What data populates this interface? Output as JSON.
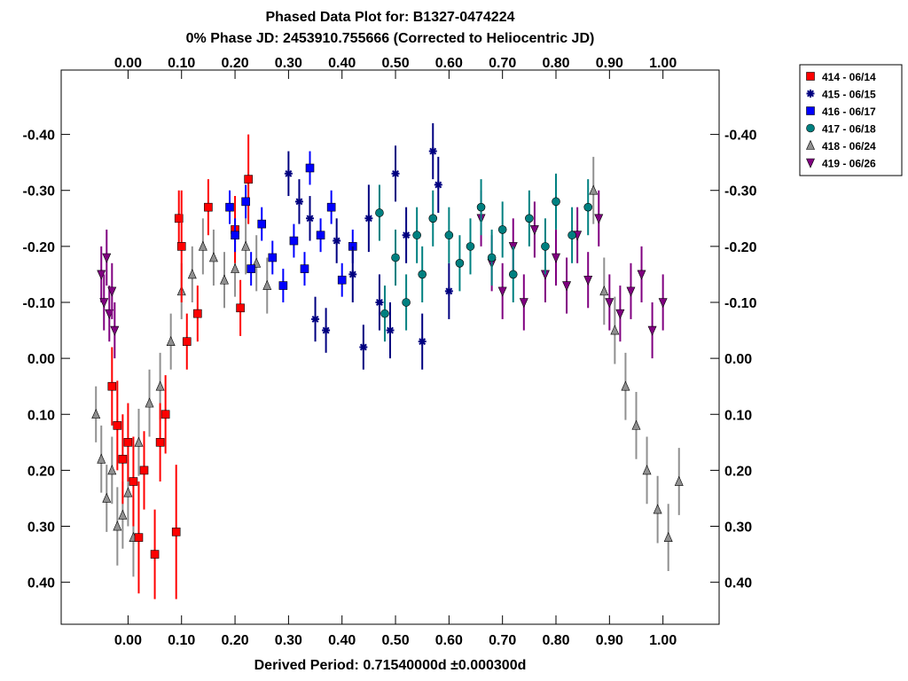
{
  "chart_data": {
    "type": "scatter",
    "title": "Phased Data Plot for: B1327-0474224",
    "subtitle": "0% Phase JD:  2453910.755666   (Corrected to Heliocentric JD)",
    "xlabel": "Derived Period: 0.71540000d   ±0.000300d",
    "ylabel": "",
    "xlim": [
      -0.125,
      1.105
    ],
    "ylim": [
      0.475,
      -0.515
    ],
    "y_inverted": true,
    "grid": false,
    "legend_position": "top-right outside",
    "x_ticks": [
      "0.00",
      "0.10",
      "0.20",
      "0.30",
      "0.40",
      "0.50",
      "0.60",
      "0.70",
      "0.80",
      "0.90",
      "1.00"
    ],
    "y_ticks": [
      "-0.40",
      "-0.30",
      "-0.20",
      "-0.10",
      "0.00",
      "0.10",
      "0.20",
      "0.30",
      "0.40"
    ],
    "series": [
      {
        "name": "414 - 06/14",
        "color": "#ff0000",
        "marker": "square",
        "x": [
          -0.03,
          -0.02,
          -0.01,
          0.0,
          0.01,
          0.02,
          0.03,
          0.05,
          0.06,
          0.07,
          0.09,
          0.095,
          0.1,
          0.11,
          0.13,
          0.15,
          0.2,
          0.21,
          0.225
        ],
        "y": [
          0.05,
          0.12,
          0.18,
          0.15,
          0.22,
          0.32,
          0.2,
          0.35,
          0.15,
          0.1,
          0.31,
          -0.25,
          -0.2,
          -0.03,
          -0.08,
          -0.27,
          -0.23,
          -0.09,
          -0.32
        ],
        "err": [
          0.07,
          0.08,
          0.08,
          0.07,
          0.08,
          0.1,
          0.07,
          0.08,
          0.07,
          0.07,
          0.12,
          0.05,
          0.1,
          0.05,
          0.05,
          0.05,
          0.06,
          0.05,
          0.08
        ]
      },
      {
        "name": "415 - 06/15",
        "color": "#000080",
        "marker": "asterisk",
        "x": [
          0.3,
          0.32,
          0.34,
          0.35,
          0.37,
          0.39,
          0.42,
          0.44,
          0.45,
          0.47,
          0.49,
          0.5,
          0.52,
          0.55,
          0.57,
          0.58,
          0.6
        ],
        "y": [
          -0.33,
          -0.28,
          -0.25,
          -0.07,
          -0.05,
          -0.21,
          -0.15,
          -0.02,
          -0.25,
          -0.1,
          -0.05,
          -0.33,
          -0.22,
          -0.03,
          -0.37,
          -0.31,
          -0.12
        ],
        "err": [
          0.04,
          0.04,
          0.04,
          0.04,
          0.04,
          0.04,
          0.05,
          0.04,
          0.06,
          0.05,
          0.05,
          0.05,
          0.05,
          0.05,
          0.05,
          0.05,
          0.05
        ]
      },
      {
        "name": "416 - 06/17",
        "color": "#0000ff",
        "marker": "square",
        "x": [
          0.19,
          0.2,
          0.22,
          0.23,
          0.25,
          0.27,
          0.29,
          0.31,
          0.33,
          0.34,
          0.36,
          0.38,
          0.4,
          0.42
        ],
        "y": [
          -0.27,
          -0.22,
          -0.28,
          -0.16,
          -0.24,
          -0.18,
          -0.13,
          -0.21,
          -0.16,
          -0.34,
          -0.22,
          -0.27,
          -0.14,
          -0.2
        ],
        "err": [
          0.03,
          0.03,
          0.03,
          0.03,
          0.03,
          0.03,
          0.03,
          0.03,
          0.03,
          0.03,
          0.03,
          0.03,
          0.03,
          0.03
        ]
      },
      {
        "name": "417 - 06/18",
        "color": "#008080",
        "marker": "circle",
        "x": [
          0.47,
          0.48,
          0.5,
          0.52,
          0.54,
          0.55,
          0.57,
          0.6,
          0.62,
          0.64,
          0.66,
          0.68,
          0.7,
          0.72,
          0.75,
          0.78,
          0.8,
          0.83,
          0.86
        ],
        "y": [
          -0.26,
          -0.08,
          -0.18,
          -0.1,
          -0.22,
          -0.15,
          -0.25,
          -0.22,
          -0.17,
          -0.2,
          -0.27,
          -0.18,
          -0.23,
          -0.15,
          -0.25,
          -0.2,
          -0.28,
          -0.22,
          -0.27
        ],
        "err": [
          0.05,
          0.05,
          0.05,
          0.05,
          0.05,
          0.05,
          0.05,
          0.05,
          0.05,
          0.05,
          0.05,
          0.05,
          0.05,
          0.05,
          0.05,
          0.05,
          0.05,
          0.05,
          0.05
        ]
      },
      {
        "name": "418 - 06/24",
        "color": "#909090",
        "marker": "triangle-up",
        "x": [
          -0.06,
          -0.05,
          -0.04,
          -0.03,
          -0.02,
          -0.01,
          0.0,
          0.01,
          0.02,
          0.04,
          0.06,
          0.08,
          0.1,
          0.12,
          0.14,
          0.16,
          0.18,
          0.2,
          0.22,
          0.24,
          0.26,
          0.87,
          0.89,
          0.91,
          0.93,
          0.95,
          0.97,
          0.99,
          1.01,
          1.03
        ],
        "y": [
          0.1,
          0.18,
          0.25,
          0.2,
          0.3,
          0.28,
          0.24,
          0.32,
          0.15,
          0.08,
          0.05,
          -0.03,
          -0.12,
          -0.15,
          -0.2,
          -0.18,
          -0.14,
          -0.16,
          -0.2,
          -0.17,
          -0.13,
          -0.3,
          -0.12,
          -0.05,
          0.05,
          0.12,
          0.2,
          0.27,
          0.32,
          0.22
        ],
        "err": [
          0.05,
          0.06,
          0.06,
          0.06,
          0.07,
          0.06,
          0.06,
          0.07,
          0.06,
          0.06,
          0.06,
          0.05,
          0.05,
          0.05,
          0.05,
          0.05,
          0.05,
          0.05,
          0.05,
          0.05,
          0.05,
          0.06,
          0.06,
          0.06,
          0.06,
          0.06,
          0.06,
          0.06,
          0.06,
          0.06
        ]
      },
      {
        "name": "419 - 06/26",
        "color": "#800080",
        "marker": "triangle-down",
        "x": [
          -0.05,
          -0.045,
          -0.04,
          -0.035,
          -0.03,
          -0.025,
          0.66,
          0.68,
          0.7,
          0.72,
          0.74,
          0.76,
          0.78,
          0.8,
          0.82,
          0.84,
          0.86,
          0.88,
          0.9,
          0.92,
          0.94,
          0.96,
          0.98,
          1.0
        ],
        "y": [
          -0.15,
          -0.1,
          -0.18,
          -0.08,
          -0.12,
          -0.05,
          -0.25,
          -0.17,
          -0.12,
          -0.2,
          -0.1,
          -0.23,
          -0.15,
          -0.18,
          -0.13,
          -0.22,
          -0.14,
          -0.25,
          -0.1,
          -0.08,
          -0.12,
          -0.15,
          -0.05,
          -0.1
        ],
        "err": [
          0.05,
          0.05,
          0.05,
          0.05,
          0.05,
          0.05,
          0.05,
          0.05,
          0.05,
          0.05,
          0.05,
          0.05,
          0.05,
          0.05,
          0.05,
          0.05,
          0.05,
          0.05,
          0.05,
          0.05,
          0.05,
          0.05,
          0.05,
          0.05
        ]
      }
    ]
  }
}
